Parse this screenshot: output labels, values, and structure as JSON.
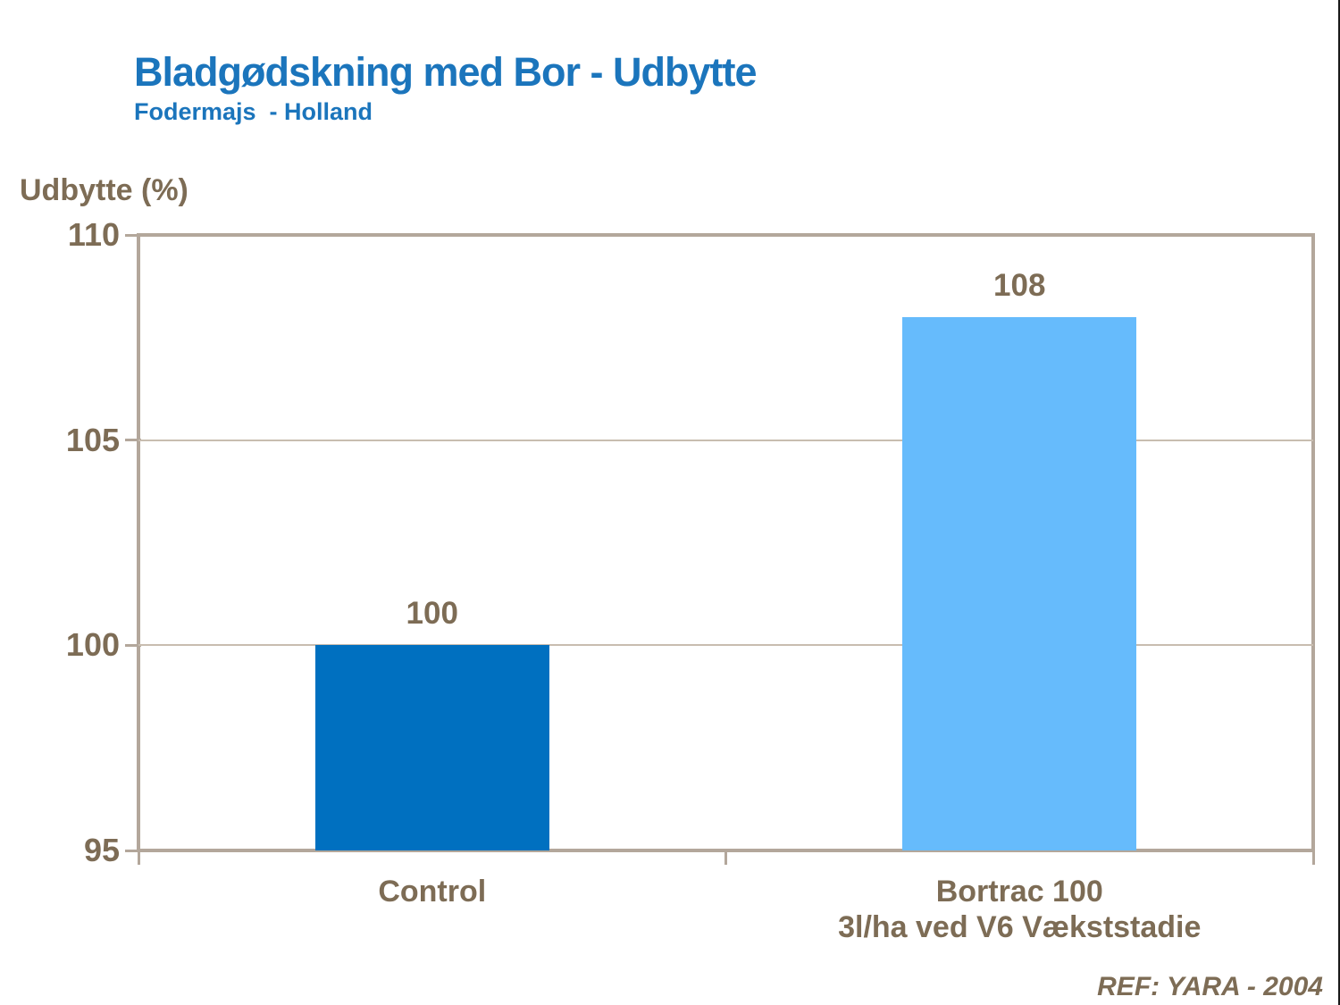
{
  "colors": {
    "title_blue": "#1B75BC",
    "text_brown": "#7D6C55",
    "axis_frame": "#B3A79B",
    "gridline": "#C8BDB0",
    "bar_control_blue": "#0070C0",
    "bar_bortrac_light_blue": "#66BBFC"
  },
  "chart_data": {
    "type": "bar",
    "title": "Bladgødskning med Bor - Udbytte",
    "subtitle": "Fodermajs  - Holland",
    "ylabel": "Udbytte (%)",
    "ylim": [
      95,
      110
    ],
    "yticks": [
      110,
      105,
      100,
      95
    ],
    "grid": "horizontal",
    "legend": "none",
    "categories": [
      [
        "Control"
      ],
      [
        "Bortrac 100",
        "3l/ha ved V6 Vækststadie"
      ]
    ],
    "values": [
      100,
      108
    ],
    "bar_colors": [
      "#0070C0",
      "#66BBFC"
    ],
    "annotation": "REF: YARA - 2004"
  }
}
